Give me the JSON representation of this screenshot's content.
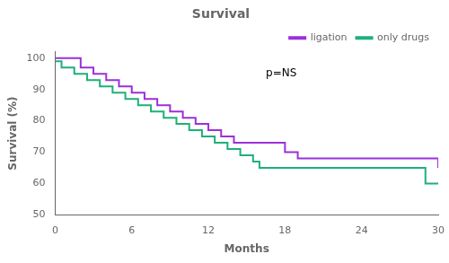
{
  "chart_data": {
    "type": "step",
    "title": "Survival",
    "xlabel": "Months",
    "ylabel": "Survival (%)",
    "xlim": [
      0,
      30
    ],
    "ylim": [
      50,
      102
    ],
    "xticks": [
      0,
      6,
      12,
      18,
      24,
      30
    ],
    "yticks": [
      50,
      60,
      70,
      80,
      90,
      100
    ],
    "grid": false,
    "legend": "upper right",
    "annotations": [
      {
        "text": "p=NS",
        "x": 16.5,
        "y": 95
      }
    ],
    "series": [
      {
        "name": "ligation",
        "color": "#9B30D9",
        "x": [
          0,
          1,
          2,
          3,
          4,
          5,
          6,
          7,
          8,
          9,
          10,
          11,
          12,
          13,
          14,
          15,
          16,
          17,
          18,
          19,
          20,
          21,
          22,
          23,
          24,
          25,
          26,
          27,
          28,
          29,
          30
        ],
        "values": [
          100,
          100,
          97,
          95,
          93,
          91,
          89,
          87,
          85,
          83,
          81,
          79,
          77,
          75,
          73,
          73,
          73,
          73,
          70,
          68,
          68,
          68,
          68,
          68,
          68,
          68,
          68,
          68,
          68,
          68,
          65
        ]
      },
      {
        "name": "only drugs",
        "color": "#1FAF7A",
        "x": [
          0,
          0.5,
          1.5,
          2.5,
          3.5,
          4.5,
          5.5,
          6.5,
          7.5,
          8.5,
          9.5,
          10.5,
          11.5,
          12.5,
          13.5,
          14.5,
          15.5,
          16,
          17,
          18,
          19,
          20,
          21,
          22,
          23,
          24,
          25,
          27,
          29,
          30
        ],
        "values": [
          99,
          97,
          95,
          93,
          91,
          89,
          87,
          85,
          83,
          81,
          79,
          77,
          75,
          73,
          71,
          69,
          67,
          65,
          65,
          65,
          65,
          65,
          65,
          65,
          65,
          65,
          65,
          65,
          60,
          60
        ]
      }
    ]
  }
}
